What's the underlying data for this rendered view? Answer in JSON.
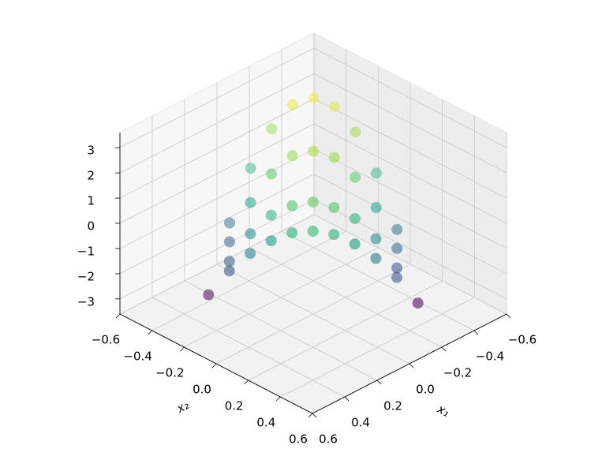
{
  "chart_data": {
    "type": "scatter3d",
    "x_label": "x₁",
    "y_label": "x₂",
    "colormap": "viridis",
    "grid": true,
    "xlim": [
      -0.6,
      0.6
    ],
    "ylim": [
      -0.6,
      0.6
    ],
    "zlim": [
      -3.6,
      3.6
    ],
    "xticks": [
      {
        "value": -0.6,
        "label": "−0.6"
      },
      {
        "value": -0.4,
        "label": "−0.4"
      },
      {
        "value": -0.2,
        "label": "−0.2"
      },
      {
        "value": 0,
        "label": "0.0"
      },
      0.2,
      0.4,
      0.6
    ],
    "yticks": [
      {
        "value": -0.6,
        "label": "−0.6"
      },
      {
        "value": -0.4,
        "label": "−0.4"
      },
      {
        "value": -0.2,
        "label": "−0.2"
      },
      {
        "value": 0,
        "label": "0.0"
      },
      0.2,
      0.4,
      0.6
    ],
    "zticks": [
      {
        "value": -3,
        "label": "−3"
      },
      {
        "value": -2,
        "label": "−2"
      },
      {
        "value": -1,
        "label": "−1"
      },
      0,
      1,
      2,
      3
    ],
    "x": [
      0.31,
      0.31,
      0.29,
      0.25,
      0.2,
      0.13,
      0.05,
      -0.05,
      -0.17,
      0.3,
      0.28,
      0.24,
      0.2,
      0.16,
      0.1,
      0.04,
      -0.04,
      -0.12,
      -0.2,
      -0.3,
      0.2,
      0.12,
      0.04,
      -0.04,
      -0.1,
      -0.16,
      -0.2,
      -0.24,
      -0.28,
      0.13,
      -0.01,
      -0.13,
      -0.23,
      -0.3,
      -0.35,
      -0.37,
      -0.37,
      -0.35
    ],
    "y": [
      -0.21,
      -0.08,
      0.03,
      0.12,
      0.2,
      0.26,
      0.31,
      0.34,
      0.35,
      -0.35,
      -0.24,
      -0.15,
      -0.06,
      0.03,
      0.1,
      0.17,
      0.22,
      0.27,
      0.32,
      0.35,
      -0.32,
      -0.27,
      -0.22,
      -0.17,
      -0.1,
      -0.03,
      0.06,
      0.15,
      0.24,
      -0.39,
      -0.4,
      -0.39,
      -0.36,
      -0.3,
      -0.22,
      -0.11,
      0.02,
      0.17
    ],
    "z": [
      -1.56,
      -0.44,
      0.36,
      0.84,
      1.0,
      0.84,
      0.36,
      -0.44,
      -1.56,
      -3,
      -1.38,
      -0.12,
      0.78,
      1.32,
      1.5,
      1.32,
      0.78,
      -0.12,
      -1.38,
      -3,
      -1.13,
      0.33,
      1.37,
      1.99,
      2.2,
      1.99,
      1.37,
      0.33,
      -1.13,
      -0.84,
      0.84,
      2.04,
      2.76,
      3.0,
      2.76,
      2.04,
      0.84,
      -0.84
    ]
  }
}
